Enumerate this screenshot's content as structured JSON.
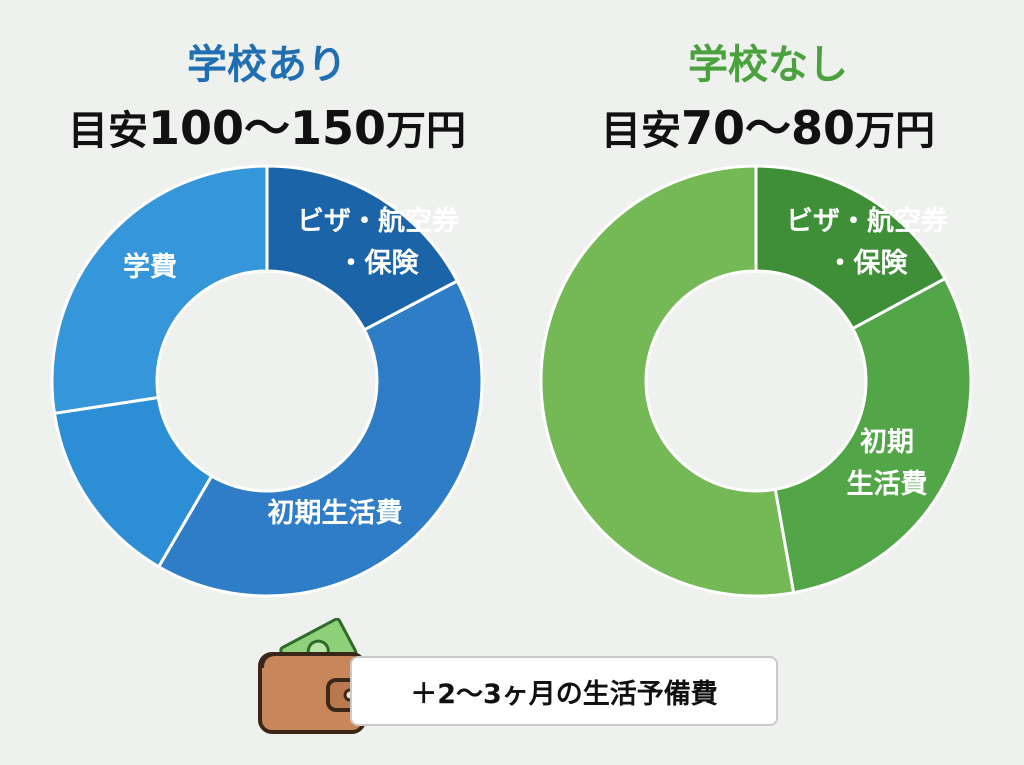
{
  "chart_data": [
    {
      "type": "pie",
      "title": "学校あり",
      "subtitle_prefix": "目安",
      "subtitle_range": "100〜150",
      "subtitle_unit": "万円",
      "colors": {
        "title": "#1f6fb2",
        "slices": [
          "#1c64a8",
          "#2f7dc6",
          "#2c8ed4",
          "#3696da"
        ]
      },
      "slices": [
        {
          "label": "ビザ・航空券・保険",
          "value": 17.3
        },
        {
          "label": "初期生活費",
          "value": 41.1
        },
        {
          "label": "",
          "value": 14.2
        },
        {
          "label": "学費",
          "value": 27.4
        }
      ]
    },
    {
      "type": "pie",
      "title": "学校なし",
      "subtitle_prefix": "目安",
      "subtitle_range": "70〜80",
      "subtitle_unit": "万円",
      "colors": {
        "title": "#4aa13d",
        "slices": [
          "#3f8f38",
          "#52a647",
          "#75b957"
        ]
      },
      "slices": [
        {
          "label": "ビザ・航空券・保険",
          "value": 17.1
        },
        {
          "label": "初期生活費",
          "value": 30.1
        },
        {
          "label": "",
          "value": 52.8
        }
      ]
    }
  ],
  "footer": {
    "note": "＋2〜3ヶ月の生活予備費",
    "icon": "wallet-icon"
  }
}
